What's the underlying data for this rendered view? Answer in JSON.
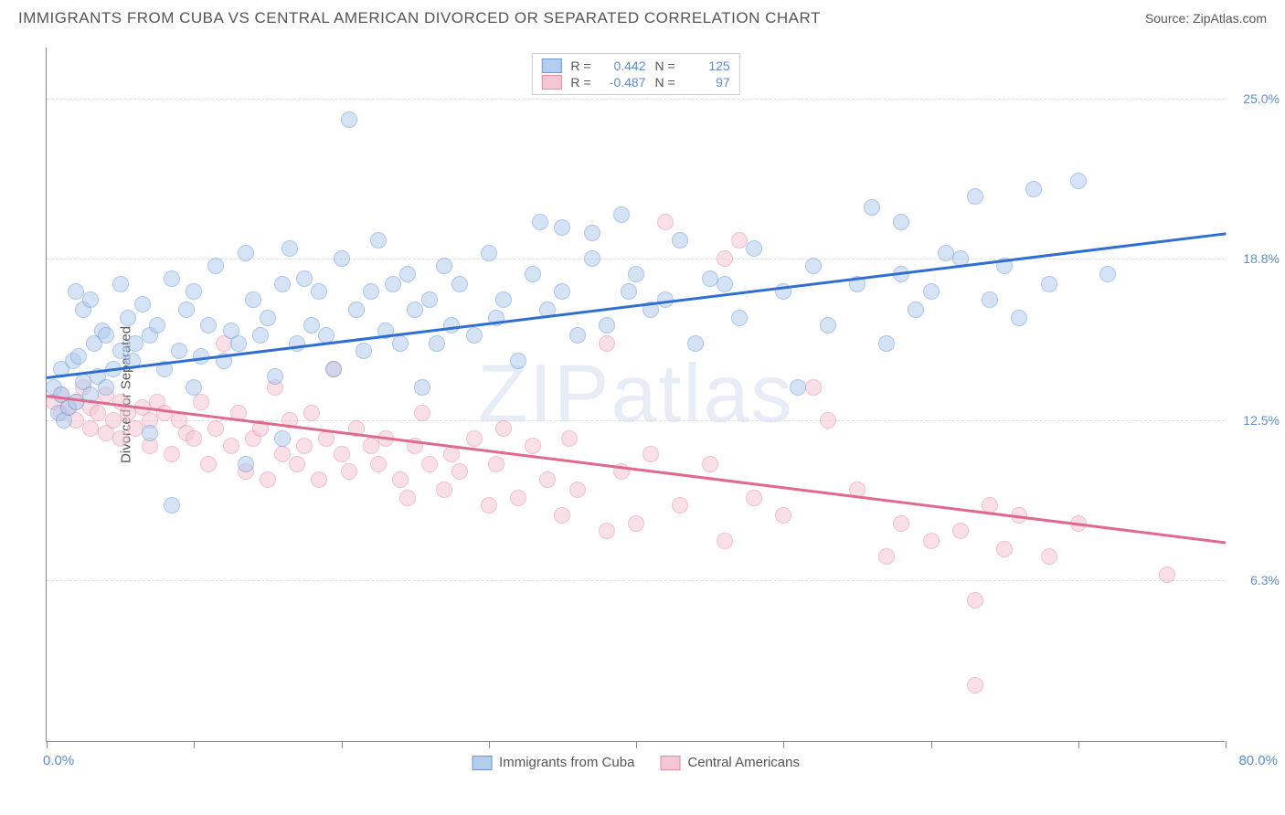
{
  "header": {
    "title": "IMMIGRANTS FROM CUBA VS CENTRAL AMERICAN DIVORCED OR SEPARATED CORRELATION CHART",
    "source": "Source: ZipAtlas.com"
  },
  "chart": {
    "type": "scatter",
    "ylabel": "Divorced or Separated",
    "xlim": [
      0,
      80
    ],
    "ylim": [
      0,
      27
    ],
    "xticks": [
      0,
      10,
      20,
      30,
      40,
      50,
      60,
      70,
      80
    ],
    "yticks": [
      6.3,
      12.5,
      18.8,
      25.0
    ],
    "ytick_labels": [
      "6.3%",
      "12.5%",
      "18.8%",
      "25.0%"
    ],
    "xaxis_start_label": "0.0%",
    "xaxis_end_label": "80.0%",
    "background_color": "#ffffff",
    "grid_color": "#dddddd",
    "axis_color": "#888888",
    "tick_label_color": "#5b8dd6",
    "watermark": "ZIPatlas",
    "marker_radius": 9,
    "marker_opacity": 0.55,
    "line_width": 2.5,
    "series": {
      "cuba": {
        "label": "Immigrants from Cuba",
        "fill": "#b3cdee",
        "stroke": "#6699dd",
        "line_color": "#2e6fd1",
        "R": "0.442",
        "N": "125",
        "trend": {
          "x1": 0,
          "y1": 14.2,
          "x2": 80,
          "y2": 19.8
        },
        "points": [
          [
            0.5,
            13.8
          ],
          [
            0.8,
            12.8
          ],
          [
            1,
            14.5
          ],
          [
            1,
            13.5
          ],
          [
            1.2,
            12.5
          ],
          [
            1.5,
            13
          ],
          [
            1.8,
            14.8
          ],
          [
            2,
            13.2
          ],
          [
            2,
            17.5
          ],
          [
            2.2,
            15
          ],
          [
            2.5,
            16.8
          ],
          [
            2.5,
            14
          ],
          [
            3,
            13.5
          ],
          [
            3,
            17.2
          ],
          [
            3.2,
            15.5
          ],
          [
            3.5,
            14.2
          ],
          [
            3.8,
            16
          ],
          [
            4,
            15.8
          ],
          [
            4,
            13.8
          ],
          [
            4.5,
            14.5
          ],
          [
            5,
            17.8
          ],
          [
            5,
            15.2
          ],
          [
            5.5,
            16.5
          ],
          [
            5.8,
            14.8
          ],
          [
            6,
            15.5
          ],
          [
            6.5,
            17
          ],
          [
            7,
            12
          ],
          [
            7,
            15.8
          ],
          [
            7.5,
            16.2
          ],
          [
            8,
            14.5
          ],
          [
            8.5,
            18
          ],
          [
            8.5,
            9.2
          ],
          [
            9,
            15.2
          ],
          [
            9.5,
            16.8
          ],
          [
            10,
            13.8
          ],
          [
            10,
            17.5
          ],
          [
            10.5,
            15
          ],
          [
            11,
            16.2
          ],
          [
            11.5,
            18.5
          ],
          [
            12,
            14.8
          ],
          [
            12.5,
            16
          ],
          [
            13,
            15.5
          ],
          [
            13.5,
            19
          ],
          [
            13.5,
            10.8
          ],
          [
            14,
            17.2
          ],
          [
            14.5,
            15.8
          ],
          [
            15,
            16.5
          ],
          [
            15.5,
            14.2
          ],
          [
            16,
            17.8
          ],
          [
            16,
            11.8
          ],
          [
            16.5,
            19.2
          ],
          [
            17,
            15.5
          ],
          [
            17.5,
            18
          ],
          [
            18,
            16.2
          ],
          [
            18.5,
            17.5
          ],
          [
            19,
            15.8
          ],
          [
            19.5,
            14.5
          ],
          [
            20,
            18.8
          ],
          [
            20.5,
            24.2
          ],
          [
            21,
            16.8
          ],
          [
            21.5,
            15.2
          ],
          [
            22,
            17.5
          ],
          [
            22.5,
            19.5
          ],
          [
            23,
            16
          ],
          [
            23.5,
            17.8
          ],
          [
            24,
            15.5
          ],
          [
            24.5,
            18.2
          ],
          [
            25,
            16.8
          ],
          [
            25.5,
            13.8
          ],
          [
            26,
            17.2
          ],
          [
            26.5,
            15.5
          ],
          [
            27,
            18.5
          ],
          [
            27.5,
            16.2
          ],
          [
            28,
            17.8
          ],
          [
            29,
            15.8
          ],
          [
            30,
            19
          ],
          [
            30.5,
            16.5
          ],
          [
            31,
            17.2
          ],
          [
            32,
            14.8
          ],
          [
            33,
            18.2
          ],
          [
            33.5,
            20.2
          ],
          [
            34,
            16.8
          ],
          [
            35,
            17.5
          ],
          [
            35,
            20
          ],
          [
            36,
            15.8
          ],
          [
            37,
            18.8
          ],
          [
            37,
            19.8
          ],
          [
            38,
            16.2
          ],
          [
            39,
            20.5
          ],
          [
            39.5,
            17.5
          ],
          [
            40,
            18.2
          ],
          [
            41,
            16.8
          ],
          [
            42,
            17.2
          ],
          [
            43,
            19.5
          ],
          [
            44,
            15.5
          ],
          [
            45,
            18
          ],
          [
            46,
            17.8
          ],
          [
            47,
            16.5
          ],
          [
            48,
            19.2
          ],
          [
            50,
            17.5
          ],
          [
            51,
            13.8
          ],
          [
            52,
            18.5
          ],
          [
            53,
            16.2
          ],
          [
            55,
            17.8
          ],
          [
            56,
            20.8
          ],
          [
            57,
            15.5
          ],
          [
            58,
            18.2
          ],
          [
            58,
            20.2
          ],
          [
            59,
            16.8
          ],
          [
            60,
            17.5
          ],
          [
            61,
            19
          ],
          [
            62,
            18.8
          ],
          [
            63,
            21.2
          ],
          [
            64,
            17.2
          ],
          [
            65,
            18.5
          ],
          [
            66,
            16.5
          ],
          [
            67,
            21.5
          ],
          [
            68,
            17.8
          ],
          [
            70,
            21.8
          ],
          [
            72,
            18.2
          ]
        ]
      },
      "central": {
        "label": "Central Americans",
        "fill": "#f5c7d3",
        "stroke": "#e98ba5",
        "line_color": "#e06a8c",
        "R": "-0.487",
        "N": "97",
        "trend": {
          "x1": 0,
          "y1": 13.5,
          "x2": 80,
          "y2": 7.8
        },
        "points": [
          [
            0.5,
            13.2
          ],
          [
            1,
            12.8
          ],
          [
            1,
            13.5
          ],
          [
            1.5,
            13
          ],
          [
            2,
            12.5
          ],
          [
            2,
            13.2
          ],
          [
            2.5,
            13.8
          ],
          [
            3,
            12.2
          ],
          [
            3,
            13
          ],
          [
            3.5,
            12.8
          ],
          [
            4,
            13.5
          ],
          [
            4,
            12
          ],
          [
            4.5,
            12.5
          ],
          [
            5,
            13.2
          ],
          [
            5,
            11.8
          ],
          [
            5.5,
            12.8
          ],
          [
            6,
            12.2
          ],
          [
            6.5,
            13
          ],
          [
            7,
            11.5
          ],
          [
            7,
            12.5
          ],
          [
            7.5,
            13.2
          ],
          [
            8,
            12.8
          ],
          [
            8.5,
            11.2
          ],
          [
            9,
            12.5
          ],
          [
            9.5,
            12
          ],
          [
            10,
            11.8
          ],
          [
            10.5,
            13.2
          ],
          [
            11,
            10.8
          ],
          [
            11.5,
            12.2
          ],
          [
            12,
            15.5
          ],
          [
            12.5,
            11.5
          ],
          [
            13,
            12.8
          ],
          [
            13.5,
            10.5
          ],
          [
            14,
            11.8
          ],
          [
            14.5,
            12.2
          ],
          [
            15,
            10.2
          ],
          [
            15.5,
            13.8
          ],
          [
            16,
            11.2
          ],
          [
            16.5,
            12.5
          ],
          [
            17,
            10.8
          ],
          [
            17.5,
            11.5
          ],
          [
            18,
            12.8
          ],
          [
            18.5,
            10.2
          ],
          [
            19,
            11.8
          ],
          [
            19.5,
            14.5
          ],
          [
            20,
            11.2
          ],
          [
            20.5,
            10.5
          ],
          [
            21,
            12.2
          ],
          [
            22,
            11.5
          ],
          [
            22.5,
            10.8
          ],
          [
            23,
            11.8
          ],
          [
            24,
            10.2
          ],
          [
            24.5,
            9.5
          ],
          [
            25,
            11.5
          ],
          [
            25.5,
            12.8
          ],
          [
            26,
            10.8
          ],
          [
            27,
            9.8
          ],
          [
            27.5,
            11.2
          ],
          [
            28,
            10.5
          ],
          [
            29,
            11.8
          ],
          [
            30,
            9.2
          ],
          [
            30.5,
            10.8
          ],
          [
            31,
            12.2
          ],
          [
            32,
            9.5
          ],
          [
            33,
            11.5
          ],
          [
            34,
            10.2
          ],
          [
            35,
            8.8
          ],
          [
            35.5,
            11.8
          ],
          [
            36,
            9.8
          ],
          [
            38,
            8.2
          ],
          [
            38,
            15.5
          ],
          [
            39,
            10.5
          ],
          [
            40,
            8.5
          ],
          [
            41,
            11.2
          ],
          [
            42,
            20.2
          ],
          [
            43,
            9.2
          ],
          [
            45,
            10.8
          ],
          [
            46,
            7.8
          ],
          [
            46,
            18.8
          ],
          [
            47,
            19.5
          ],
          [
            48,
            9.5
          ],
          [
            50,
            8.8
          ],
          [
            52,
            13.8
          ],
          [
            53,
            12.5
          ],
          [
            55,
            9.8
          ],
          [
            57,
            7.2
          ],
          [
            58,
            8.5
          ],
          [
            60,
            7.8
          ],
          [
            62,
            8.2
          ],
          [
            63,
            5.5
          ],
          [
            64,
            9.2
          ],
          [
            65,
            7.5
          ],
          [
            66,
            8.8
          ],
          [
            68,
            7.2
          ],
          [
            70,
            8.5
          ],
          [
            76,
            6.5
          ],
          [
            63,
            2.2
          ]
        ]
      }
    }
  }
}
